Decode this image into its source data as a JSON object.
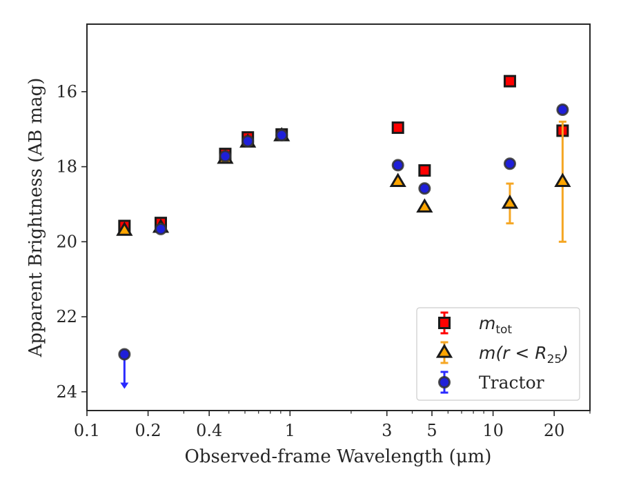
{
  "chart_data": {
    "type": "scatter",
    "xlabel": "Observed-frame Wavelength (μm)",
    "ylabel": "Apparent Brightness (AB mag)",
    "xscale": "log",
    "yscale": "linear",
    "y_inverted": true,
    "xlim": [
      0.1,
      30
    ],
    "ylim": [
      24.5,
      14.2
    ],
    "xticks": [
      0.1,
      0.2,
      0.4,
      1,
      3,
      5,
      10,
      20
    ],
    "xtick_labels": [
      "0.1",
      "0.2",
      "0.4",
      "1",
      "3",
      "5",
      "10",
      "20"
    ],
    "yticks": [
      16,
      18,
      20,
      22,
      24
    ],
    "ytick_labels": [
      "16",
      "18",
      "20",
      "22",
      "24"
    ],
    "grid": false,
    "legend_position": "bottom-right",
    "series": [
      {
        "name": "m_tot",
        "legend_main": "m",
        "legend_sub": "tot",
        "marker": "square",
        "color": "#ff0000",
        "errorbar_color": "#ff0000",
        "points": [
          {
            "x": 0.153,
            "y": 19.58,
            "err": 0.04
          },
          {
            "x": 0.231,
            "y": 19.5,
            "err": 0.04
          },
          {
            "x": 0.48,
            "y": 17.66,
            "err": 0.05
          },
          {
            "x": 0.62,
            "y": 17.22,
            "err": 0.05
          },
          {
            "x": 0.91,
            "y": 17.14,
            "err": 0.03
          },
          {
            "x": 3.4,
            "y": 16.96,
            "err": 0.03
          },
          {
            "x": 4.6,
            "y": 18.1,
            "err": 0.03
          },
          {
            "x": 12.1,
            "y": 15.72,
            "err": 0.03
          },
          {
            "x": 22.0,
            "y": 17.04,
            "err": 0.05
          }
        ]
      },
      {
        "name": "m(r<R_25)",
        "legend_main": "m(r < R",
        "legend_sub": "25",
        "legend_tail": ")",
        "marker": "triangle",
        "color": "#ffa500",
        "errorbar_color": "#f5a623",
        "points": [
          {
            "x": 0.153,
            "y": 19.7,
            "err": 0.04
          },
          {
            "x": 0.231,
            "y": 19.62,
            "err": 0.04
          },
          {
            "x": 0.48,
            "y": 17.78,
            "err": 0.05
          },
          {
            "x": 0.62,
            "y": 17.35,
            "err": 0.05
          },
          {
            "x": 0.91,
            "y": 17.18,
            "err": 0.04
          },
          {
            "x": 3.4,
            "y": 18.4,
            "err": 0.04
          },
          {
            "x": 4.6,
            "y": 19.08,
            "err": 0.04
          },
          {
            "x": 12.1,
            "y": 18.98,
            "err": 0.53
          },
          {
            "x": 22.0,
            "y": 18.4,
            "err": 1.6
          }
        ]
      },
      {
        "name": "Tractor",
        "legend_main": "Tractor",
        "marker": "circle",
        "color": "#1f1fd9",
        "errorbar_color": "#2a2aff",
        "points": [
          {
            "x": 0.153,
            "y": 23.0,
            "upper_limit": true
          },
          {
            "x": 0.231,
            "y": 19.66,
            "err": 0.04
          },
          {
            "x": 0.48,
            "y": 17.72,
            "err": 0.05
          },
          {
            "x": 0.62,
            "y": 17.32,
            "err": 0.05
          },
          {
            "x": 0.91,
            "y": 17.16,
            "err": 0.03
          },
          {
            "x": 3.4,
            "y": 17.96,
            "err": 0.03
          },
          {
            "x": 4.6,
            "y": 18.58,
            "err": 0.03
          },
          {
            "x": 12.1,
            "y": 17.92,
            "err": 0.03
          },
          {
            "x": 22.0,
            "y": 16.48,
            "err": 0.03
          }
        ]
      }
    ]
  }
}
